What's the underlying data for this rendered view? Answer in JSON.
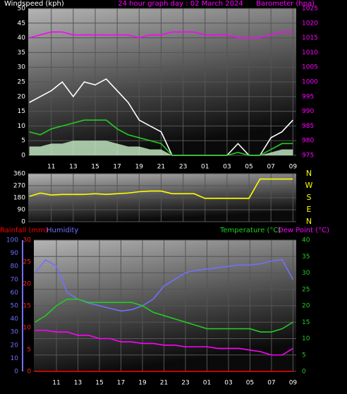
{
  "chart_data": [
    {
      "type": "line",
      "title": "24 hour graph day : 02 March 2024",
      "y_label": "Windspeed (kph)",
      "y2_label": "Barometer (hpa)",
      "x": [
        9,
        10,
        11,
        12,
        13,
        14,
        15,
        16,
        17,
        18,
        19,
        20,
        21,
        22,
        23,
        24,
        25,
        26,
        27,
        28,
        29,
        30,
        31,
        32,
        33
      ],
      "xlim": [
        8.9,
        33.3
      ],
      "xticks": [
        11,
        13,
        15,
        17,
        19,
        21,
        23,
        {
          "value": 25,
          "label": "01"
        },
        {
          "value": 27,
          "label": "03"
        },
        {
          "value": 29,
          "label": "05"
        },
        {
          "value": 31,
          "label": "07"
        },
        {
          "value": 33,
          "label": "09"
        }
      ],
      "ylim": [
        0,
        50
      ],
      "yticks": [
        0,
        5,
        10,
        15,
        20,
        25,
        30,
        35,
        40,
        45,
        50
      ],
      "ytick_color": "#ffffff",
      "y2lim": [
        975,
        1025
      ],
      "y2ticks": [
        975,
        980,
        985,
        990,
        995,
        1000,
        1005,
        1010,
        1015,
        1020,
        1025
      ],
      "y2tick_color": "#ff00ff",
      "grid": true,
      "grid_axis": "y",
      "series": [
        {
          "color": "#c8f0c8",
          "area": true,
          "values": [
            3,
            3,
            4,
            4,
            5,
            5,
            5,
            5,
            4,
            3,
            3,
            2,
            2,
            0,
            0,
            0,
            0,
            0,
            0,
            0,
            0,
            0,
            1,
            2,
            2
          ]
        },
        {
          "color": "#ffffff",
          "values": [
            18,
            20,
            22,
            25,
            20,
            25,
            24,
            26,
            22,
            18,
            12,
            10,
            8,
            0,
            0,
            0,
            0,
            0,
            0,
            4,
            0,
            0,
            6,
            8,
            12
          ]
        },
        {
          "color": "#22cc22",
          "values": [
            8,
            7,
            9,
            10,
            11,
            12,
            12,
            12,
            9,
            7,
            6,
            5,
            4,
            0,
            0,
            0,
            0,
            0,
            0,
            1,
            0,
            0,
            2,
            4,
            4
          ]
        },
        {
          "color": "#ff00ff",
          "axis": "y2",
          "values": [
            1015,
            1016,
            1017,
            1017,
            1016,
            1016,
            1016,
            1016,
            1016,
            1016,
            1015,
            1016,
            1016,
            1017,
            1017,
            1017,
            1016,
            1016,
            1016,
            1015,
            1015,
            1015,
            1016,
            1017,
            1017
          ]
        }
      ]
    },
    {
      "type": "line",
      "x": [
        9,
        10,
        11,
        12,
        13,
        14,
        15,
        16,
        17,
        18,
        19,
        20,
        21,
        22,
        23,
        24,
        25,
        26,
        27,
        28,
        29,
        30,
        31,
        32,
        33
      ],
      "xlim": [
        8.9,
        33.3
      ],
      "ylim": [
        0,
        360
      ],
      "yticks": [
        0,
        90,
        180,
        270,
        360
      ],
      "ytick_color": "#ffffff",
      "grid": true,
      "grid_axis": "y",
      "compass": [
        "N",
        "W",
        "S",
        "E",
        "N"
      ],
      "compass_color": "#ffff00",
      "series": [
        {
          "color": "#ffff00",
          "values": [
            190,
            215,
            200,
            205,
            205,
            205,
            210,
            205,
            210,
            215,
            225,
            230,
            230,
            210,
            210,
            210,
            175,
            175,
            175,
            175,
            175,
            320,
            320,
            320,
            320
          ]
        }
      ]
    },
    {
      "type": "line",
      "x": [
        9,
        10,
        11,
        12,
        13,
        14,
        15,
        16,
        17,
        18,
        19,
        20,
        21,
        22,
        23,
        24,
        25,
        26,
        27,
        28,
        29,
        30,
        31,
        32,
        33
      ],
      "xlim": [
        8.9,
        33.3
      ],
      "xticks": [
        11,
        13,
        15,
        17,
        19,
        21,
        23,
        {
          "value": 25,
          "label": "01"
        },
        {
          "value": 27,
          "label": "03"
        },
        {
          "value": 29,
          "label": "05"
        },
        {
          "value": 31,
          "label": "07"
        },
        {
          "value": 33,
          "label": "09"
        }
      ],
      "ylim": [
        0,
        30
      ],
      "yticks": [
        0,
        5,
        10,
        15,
        20,
        25,
        30
      ],
      "ytick_color": "#ff2020",
      "y2lim": [
        0,
        40
      ],
      "y2ticks": [
        0,
        5,
        10,
        15,
        20,
        25,
        30,
        35,
        40
      ],
      "y2tick_color": "#22cc22",
      "y3lim": [
        0,
        100
      ],
      "y3ticks": [
        0,
        10,
        20,
        30,
        40,
        50,
        60,
        70,
        80,
        90,
        100
      ],
      "y3tick_color": "#7070ff",
      "grid": true,
      "grid_axis": "y2",
      "series": [
        {
          "name": "Rainfall (mm)",
          "color": "#ff0000",
          "axis": "y",
          "values": [
            0,
            0,
            0,
            0,
            0,
            0,
            0,
            0,
            0,
            0,
            0,
            0,
            0,
            0,
            0,
            0,
            0,
            0,
            0,
            0,
            0,
            0,
            0,
            0,
            0
          ]
        },
        {
          "name": "Humidity",
          "color": "#7070ff",
          "axis": "y3",
          "values": [
            75,
            85,
            80,
            60,
            55,
            52,
            50,
            48,
            46,
            47,
            50,
            55,
            65,
            70,
            75,
            77,
            78,
            79,
            80,
            81,
            81,
            82,
            84,
            85,
            70
          ]
        },
        {
          "name": "Temperature (°C)",
          "color": "#22cc22",
          "axis": "y2",
          "values": [
            15,
            17,
            20,
            22,
            22,
            21,
            21,
            21,
            21,
            21,
            20,
            18,
            17,
            16,
            15,
            14,
            13,
            13,
            13,
            13,
            13,
            12,
            12,
            13,
            15
          ]
        },
        {
          "name": "Dew Point (°C)",
          "color": "#ff00ff",
          "axis": "y2",
          "values": [
            12.5,
            12.5,
            12,
            12,
            11,
            11,
            10,
            10,
            9,
            9,
            8.5,
            8.5,
            8,
            8,
            7.5,
            7.5,
            7.5,
            7,
            7,
            7,
            6.5,
            6,
            5,
            5,
            7
          ]
        }
      ]
    }
  ]
}
